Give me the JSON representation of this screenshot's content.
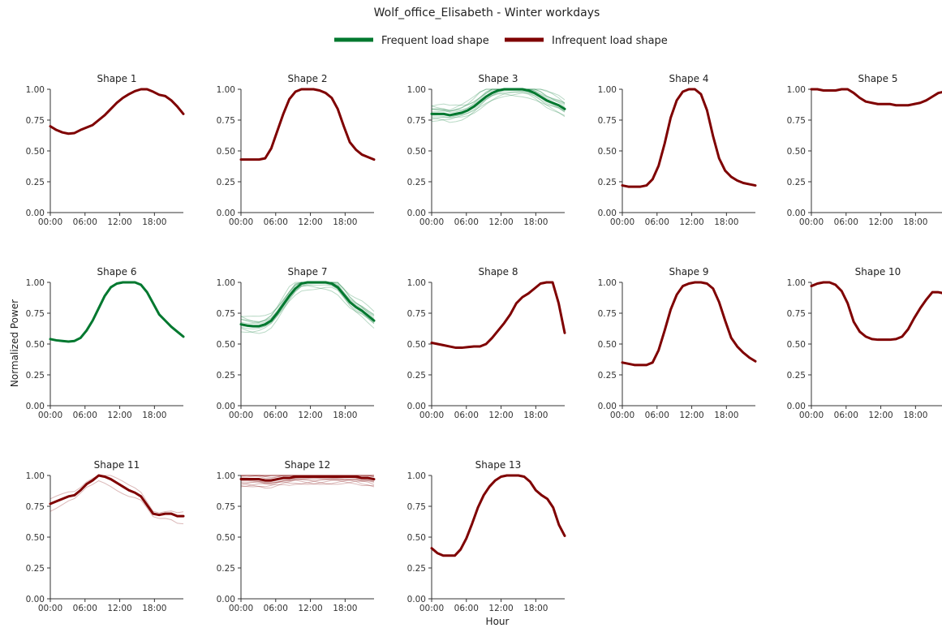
{
  "chart_data": {
    "type": "line",
    "title": "Wolf_office_Elisabeth - Winter workdays",
    "xlabel": "Hour",
    "ylabel": "Normalized Power",
    "x_ticks": [
      "00:00",
      "06:00",
      "12:00",
      "18:00"
    ],
    "y_ticks": [
      "0.00",
      "0.25",
      "0.50",
      "0.75",
      "1.00"
    ],
    "ylim": [
      0,
      1
    ],
    "xlim": [
      0,
      23
    ],
    "grid": false,
    "legend": {
      "placement": "top-center",
      "entries": [
        {
          "label": "Frequent load shape",
          "color": "#00782f"
        },
        {
          "label": "Infrequent load shape",
          "color": "#7f0000"
        }
      ]
    },
    "panels": [
      {
        "title": "Shape 1",
        "category": "infrequent",
        "members": 1,
        "values": [
          0.7,
          0.67,
          0.65,
          0.64,
          0.645,
          0.67,
          0.69,
          0.71,
          0.75,
          0.79,
          0.84,
          0.89,
          0.93,
          0.96,
          0.985,
          1.0,
          1.0,
          0.98,
          0.955,
          0.945,
          0.91,
          0.86,
          0.8
        ]
      },
      {
        "title": "Shape 2",
        "category": "infrequent",
        "members": 1,
        "values": [
          0.43,
          0.43,
          0.43,
          0.43,
          0.44,
          0.52,
          0.66,
          0.8,
          0.92,
          0.98,
          1.0,
          1.0,
          1.0,
          0.99,
          0.97,
          0.93,
          0.84,
          0.7,
          0.57,
          0.51,
          0.47,
          0.45,
          0.43
        ]
      },
      {
        "title": "Shape 3",
        "category": "frequent",
        "members": 12,
        "values": [
          0.8,
          0.8,
          0.8,
          0.79,
          0.8,
          0.81,
          0.83,
          0.86,
          0.9,
          0.94,
          0.97,
          0.99,
          1.0,
          1.0,
          1.0,
          1.0,
          0.99,
          0.97,
          0.94,
          0.91,
          0.89,
          0.87,
          0.84
        ]
      },
      {
        "title": "Shape 4",
        "category": "infrequent",
        "members": 1,
        "values": [
          0.22,
          0.21,
          0.21,
          0.21,
          0.22,
          0.27,
          0.38,
          0.56,
          0.77,
          0.91,
          0.98,
          1.0,
          1.0,
          0.96,
          0.83,
          0.62,
          0.44,
          0.34,
          0.29,
          0.26,
          0.24,
          0.23,
          0.22
        ]
      },
      {
        "title": "Shape 5",
        "category": "infrequent",
        "members": 1,
        "values": [
          1.0,
          1.0,
          0.99,
          0.99,
          0.99,
          1.0,
          1.0,
          0.97,
          0.93,
          0.9,
          0.89,
          0.88,
          0.88,
          0.88,
          0.87,
          0.87,
          0.87,
          0.88,
          0.89,
          0.91,
          0.94,
          0.97,
          0.98
        ]
      },
      {
        "title": "Shape 6",
        "category": "frequent",
        "members": 1,
        "values": [
          0.54,
          0.53,
          0.525,
          0.52,
          0.525,
          0.55,
          0.61,
          0.69,
          0.79,
          0.89,
          0.96,
          0.99,
          1.0,
          1.0,
          1.0,
          0.98,
          0.92,
          0.83,
          0.74,
          0.69,
          0.64,
          0.6,
          0.56
        ]
      },
      {
        "title": "Shape 7",
        "category": "frequent",
        "members": 10,
        "values": [
          0.66,
          0.65,
          0.645,
          0.645,
          0.66,
          0.69,
          0.75,
          0.82,
          0.89,
          0.95,
          0.99,
          1.0,
          1.0,
          1.0,
          1.0,
          0.99,
          0.96,
          0.9,
          0.84,
          0.8,
          0.77,
          0.73,
          0.69
        ]
      },
      {
        "title": "Shape 8",
        "category": "infrequent",
        "members": 1,
        "values": [
          0.51,
          0.5,
          0.49,
          0.48,
          0.47,
          0.47,
          0.475,
          0.48,
          0.48,
          0.5,
          0.55,
          0.61,
          0.67,
          0.74,
          0.83,
          0.88,
          0.91,
          0.95,
          0.99,
          1.0,
          1.0,
          0.83,
          0.59
        ]
      },
      {
        "title": "Shape 9",
        "category": "infrequent",
        "members": 1,
        "values": [
          0.35,
          0.34,
          0.33,
          0.33,
          0.33,
          0.35,
          0.45,
          0.61,
          0.78,
          0.9,
          0.97,
          0.99,
          1.0,
          1.0,
          0.99,
          0.95,
          0.84,
          0.69,
          0.55,
          0.48,
          0.43,
          0.39,
          0.36
        ]
      },
      {
        "title": "Shape 10",
        "category": "infrequent",
        "members": 1,
        "values": [
          0.97,
          0.99,
          1.0,
          1.0,
          0.98,
          0.93,
          0.83,
          0.68,
          0.6,
          0.56,
          0.54,
          0.535,
          0.535,
          0.535,
          0.54,
          0.56,
          0.62,
          0.71,
          0.79,
          0.86,
          0.92,
          0.92,
          0.91
        ]
      },
      {
        "title": "Shape 11",
        "category": "infrequent",
        "members": 3,
        "values": [
          0.77,
          0.79,
          0.81,
          0.83,
          0.84,
          0.88,
          0.93,
          0.96,
          1.0,
          0.99,
          0.97,
          0.94,
          0.91,
          0.88,
          0.86,
          0.83,
          0.76,
          0.69,
          0.68,
          0.69,
          0.69,
          0.67,
          0.67
        ]
      },
      {
        "title": "Shape 12",
        "category": "infrequent",
        "members": 15,
        "values": [
          0.97,
          0.97,
          0.97,
          0.97,
          0.96,
          0.96,
          0.97,
          0.98,
          0.98,
          0.99,
          0.99,
          0.99,
          0.99,
          0.99,
          0.99,
          0.99,
          0.99,
          0.99,
          0.99,
          0.99,
          0.98,
          0.98,
          0.97
        ]
      },
      {
        "title": "Shape 13",
        "category": "infrequent",
        "members": 1,
        "values": [
          0.41,
          0.37,
          0.35,
          0.35,
          0.35,
          0.4,
          0.49,
          0.61,
          0.74,
          0.84,
          0.91,
          0.96,
          0.99,
          1.0,
          1.0,
          1.0,
          0.99,
          0.95,
          0.88,
          0.84,
          0.81,
          0.74,
          0.6,
          0.51
        ]
      }
    ]
  }
}
